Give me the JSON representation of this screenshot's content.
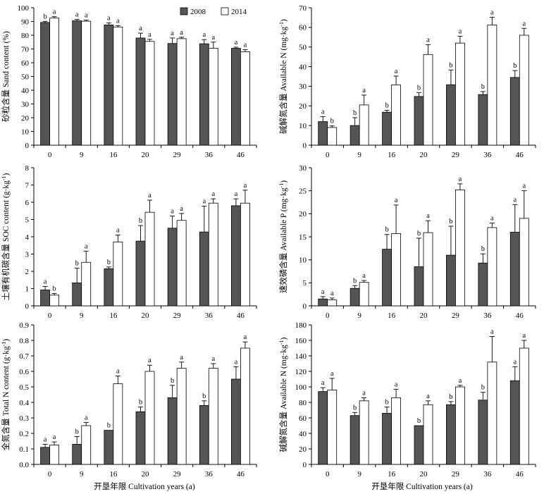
{
  "legend": {
    "series_2008": "2008",
    "series_2014": "2014"
  },
  "x_axis_label": "开垦年限 Cultivation years (a)",
  "chart_data": [
    {
      "type": "bar",
      "ylabel": "砂粒含量 Sand content (%)",
      "categories": [
        "0",
        "9",
        "16",
        "20",
        "29",
        "36",
        "46"
      ],
      "ylim": [
        0,
        100
      ],
      "yticks": [
        0,
        10,
        20,
        30,
        40,
        50,
        60,
        70,
        80,
        90,
        100
      ],
      "legend_position": "top-right",
      "series": [
        {
          "name": "2008",
          "color": "#555555",
          "values": [
            89.3,
            90.5,
            87.5,
            78.0,
            74.0,
            73.8,
            70.5
          ],
          "errors": [
            0.8,
            1.0,
            1.5,
            3.5,
            4.0,
            3.0,
            0.8
          ],
          "sig": [
            "b",
            "a",
            "a",
            "a",
            "a",
            "a",
            "a"
          ]
        },
        {
          "name": "2014",
          "color": "#ffffff",
          "values": [
            92.5,
            90.2,
            86.0,
            75.5,
            77.5,
            70.5,
            68.0
          ],
          "errors": [
            1.0,
            0.8,
            1.0,
            1.5,
            1.0,
            4.5,
            1.5
          ],
          "sig": [
            "a",
            "a",
            "a",
            "a",
            "a",
            "a",
            "a"
          ]
        }
      ]
    },
    {
      "type": "bar",
      "ylabel": "碱解氮含量 Available N (mg·kg-1)",
      "categories": [
        "0",
        "9",
        "16",
        "20",
        "29",
        "36",
        "46"
      ],
      "ylim": [
        0,
        70
      ],
      "yticks": [
        0,
        10,
        20,
        30,
        40,
        50,
        60,
        70
      ],
      "series": [
        {
          "name": "2008",
          "color": "#555555",
          "values": [
            12.0,
            10.0,
            16.8,
            24.8,
            30.8,
            25.8,
            34.5
          ],
          "errors": [
            2.5,
            4.0,
            1.0,
            2.0,
            7.5,
            1.5,
            3.5
          ],
          "sig": [
            "a",
            "b",
            "b",
            "b",
            "b",
            "b",
            "b"
          ]
        },
        {
          "name": "2014",
          "color": "#ffffff",
          "values": [
            9.0,
            20.5,
            30.7,
            46.2,
            52.0,
            61.2,
            56.0
          ],
          "errors": [
            0.8,
            5.0,
            4.5,
            5.0,
            3.5,
            4.0,
            3.5
          ],
          "sig": [
            "b",
            "a",
            "a",
            "a",
            "a",
            "a",
            "a"
          ]
        }
      ]
    },
    {
      "type": "bar",
      "ylabel": "土壤有机碳含量 SOC content (g·kg-1)",
      "categories": [
        "0",
        "9",
        "16",
        "20",
        "29",
        "36",
        "46"
      ],
      "ylim": [
        0,
        8
      ],
      "yticks": [
        0,
        1,
        2,
        3,
        4,
        5,
        6,
        7,
        8
      ],
      "series": [
        {
          "name": "2008",
          "color": "#555555",
          "values": [
            0.92,
            1.33,
            2.15,
            3.75,
            4.5,
            4.28,
            5.8
          ],
          "errors": [
            0.2,
            0.85,
            0.1,
            0.9,
            0.7,
            1.5,
            0.4
          ],
          "sig": [
            "a",
            "b",
            "b",
            "b",
            "a",
            "a",
            "a"
          ]
        },
        {
          "name": "2014",
          "color": "#ffffff",
          "values": [
            0.62,
            2.52,
            3.7,
            5.42,
            4.95,
            5.95,
            5.95
          ],
          "errors": [
            0.1,
            0.65,
            0.4,
            0.7,
            0.4,
            0.25,
            0.75
          ],
          "sig": [
            "b",
            "a",
            "a",
            "a",
            "a",
            "a",
            "a"
          ]
        }
      ]
    },
    {
      "type": "bar",
      "ylabel": "速效磷含量 Available P (mg·kg-1)",
      "categories": [
        "0",
        "9",
        "16",
        "20",
        "29",
        "36",
        "46"
      ],
      "ylim": [
        0,
        30
      ],
      "yticks": [
        0,
        5,
        10,
        15,
        20,
        25,
        30
      ],
      "series": [
        {
          "name": "2008",
          "color": "#555555",
          "values": [
            1.5,
            3.8,
            12.3,
            8.5,
            11.0,
            9.3,
            16.0
          ],
          "errors": [
            0.5,
            0.6,
            3.2,
            6.2,
            6.3,
            2.0,
            6.0
          ],
          "sig": [
            "a",
            "b",
            "b",
            "b",
            "b",
            "b",
            "a"
          ]
        },
        {
          "name": "2014",
          "color": "#ffffff",
          "values": [
            1.3,
            5.1,
            15.7,
            15.9,
            25.2,
            17.0,
            19.0
          ],
          "errors": [
            0.4,
            0.4,
            6.2,
            2.6,
            1.3,
            1.0,
            6.0
          ],
          "sig": [
            "a",
            "a",
            "a",
            "a",
            "a",
            "a",
            "a"
          ]
        }
      ]
    },
    {
      "type": "bar",
      "ylabel": "全氮含量 Total N content (g·kg-1)",
      "categories": [
        "0",
        "9",
        "16",
        "20",
        "29",
        "36",
        "46"
      ],
      "ylim": [
        0,
        0.9
      ],
      "yticks": [
        0,
        0.1,
        0.2,
        0.3,
        0.4,
        0.5,
        0.6,
        0.7,
        0.8,
        0.9
      ],
      "series": [
        {
          "name": "2008",
          "color": "#555555",
          "values": [
            0.11,
            0.13,
            0.22,
            0.34,
            0.43,
            0.38,
            0.55
          ],
          "errors": [
            0.02,
            0.05,
            0.0,
            0.03,
            0.08,
            0.03,
            0.08
          ],
          "sig": [
            "a",
            "b",
            "b",
            "b",
            "b",
            "b",
            "a"
          ]
        },
        {
          "name": "2014",
          "color": "#ffffff",
          "values": [
            0.125,
            0.25,
            0.52,
            0.6,
            0.62,
            0.62,
            0.75
          ],
          "errors": [
            0.02,
            0.02,
            0.05,
            0.04,
            0.04,
            0.03,
            0.04
          ],
          "sig": [
            "a",
            "a",
            "a",
            "a",
            "a",
            "a",
            "a"
          ]
        }
      ]
    },
    {
      "type": "bar",
      "ylabel": "碱解氮含量 Available N (mg·kg-1)",
      "categories": [
        "0",
        "9",
        "16",
        "20",
        "29",
        "36",
        "46"
      ],
      "ylim": [
        0,
        180
      ],
      "yticks": [
        0,
        20,
        40,
        60,
        80,
        100,
        120,
        140,
        160,
        180
      ],
      "series": [
        {
          "name": "2008",
          "color": "#555555",
          "values": [
            94,
            63,
            66,
            50,
            77,
            83,
            108
          ],
          "errors": [
            5,
            4,
            8,
            0,
            4,
            10,
            18
          ],
          "sig": [
            "a",
            "b",
            "b",
            "b",
            "b",
            "b",
            "a"
          ]
        },
        {
          "name": "2014",
          "color": "#ffffff",
          "values": [
            96,
            82,
            86,
            77,
            100,
            132,
            150
          ],
          "errors": [
            15,
            4,
            11,
            5,
            2,
            33,
            10
          ],
          "sig": [
            "a",
            "a",
            "a",
            "a",
            "a",
            "a",
            "a"
          ]
        }
      ]
    }
  ]
}
